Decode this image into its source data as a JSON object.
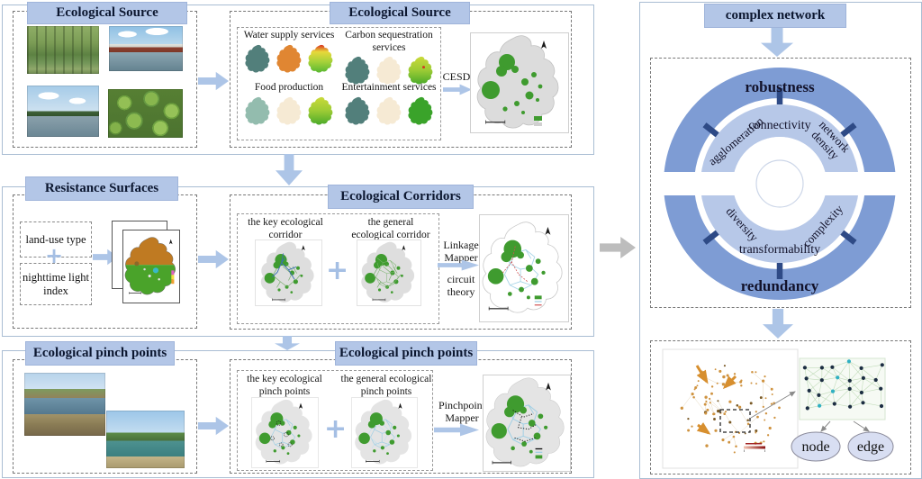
{
  "colors": {
    "panel_title_bg": "#b3c6e7",
    "arrow_blue": "#adc5e7",
    "arrow_gray": "#bdbdbd",
    "ring_outer": "#7e9cd4",
    "ring_inner": "#b7c8e8",
    "ring_tick": "#2e4a86",
    "source_green": "#3f9b2f"
  },
  "row1": {
    "left": {
      "title": "Ecological Source"
    },
    "middle": {
      "title": "Ecological Source",
      "groups": [
        {
          "label": "Water supply services"
        },
        {
          "label": "Carbon sequestration services"
        },
        {
          "label": "Food production"
        },
        {
          "label": "Entertainment services"
        }
      ],
      "result_label": "CESDR"
    }
  },
  "row2": {
    "left": {
      "title": "Resistance Surfaces",
      "input1": "land-use type",
      "input2": "nighttime light index",
      "plus": "+"
    },
    "middle": {
      "title": "Ecological Corridors",
      "label_key": "the key ecological corridor",
      "label_general": "the general ecological corridor",
      "plus": "+",
      "method_line1": "Linkage Mapper",
      "method_line2": "circuit theory"
    }
  },
  "row3": {
    "left": {
      "title": "Ecological pinch points"
    },
    "middle": {
      "title": "Ecological pinch points",
      "label_key": "the key ecological pinch points",
      "label_general": "the general ecological pinch points",
      "plus": "+",
      "method": "Pinchpoint Mapper"
    }
  },
  "right": {
    "title": "complex network",
    "ring": {
      "outer_top": "robustness",
      "outer_bottom": "redundancy",
      "inner_top": "connectivity",
      "upper_left": "agglomeration",
      "upper_right_1": "network",
      "upper_right_2": "density",
      "lower_left": "diversity",
      "lower_right": "complexity",
      "inner_bottom": "transformability"
    },
    "legend": {
      "node": "node",
      "edge": "edge"
    }
  }
}
